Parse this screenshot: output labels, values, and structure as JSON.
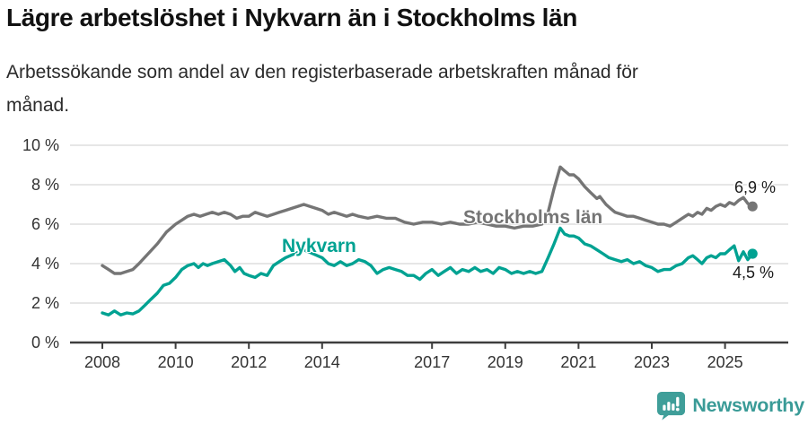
{
  "header": {
    "title": "Lägre arbetslöshet i Nykvarn än i Stockholms län",
    "subtitle_line1": "Arbetssökande som andel av den registerbaserade arbetskraften månad för",
    "subtitle_line2": "månad."
  },
  "chart_data": {
    "type": "line",
    "title": "Lägre arbetslöshet i Nykvarn än i Stockholms län",
    "subtitle": "Arbetssökande som andel av den registerbaserade arbetskraften månad för månad.",
    "x_axis": {
      "range": [
        2008,
        2025.9
      ],
      "ticks": [
        {
          "value": 2008,
          "label": "2008"
        },
        {
          "value": 2010,
          "label": "2010"
        },
        {
          "value": 2012,
          "label": "2012"
        },
        {
          "value": 2014,
          "label": "2014"
        },
        {
          "value": 2017,
          "label": "2017"
        },
        {
          "value": 2019,
          "label": "2019"
        },
        {
          "value": 2021,
          "label": "2021"
        },
        {
          "value": 2023,
          "label": "2023"
        },
        {
          "value": 2025,
          "label": "2025"
        }
      ]
    },
    "y_axis": {
      "range": [
        0,
        10
      ],
      "unit": "%",
      "ticks": [
        {
          "value": 0,
          "label": "0 %"
        },
        {
          "value": 2,
          "label": "2 %"
        },
        {
          "value": 4,
          "label": "4 %"
        },
        {
          "value": 6,
          "label": "6 %"
        },
        {
          "value": 8,
          "label": "8 %"
        },
        {
          "value": 10,
          "label": "10 %"
        }
      ]
    },
    "style": {
      "grid_color": "#dedede",
      "axis_color": "#3d3d3d",
      "tick_color": "#333333"
    },
    "legend_position": "inline-labels",
    "series": [
      {
        "id": "stockholms-lan",
        "name": "Stockholms län",
        "color": "#757575",
        "end_label": "6,9 %",
        "points": [
          [
            2008.0,
            3.9
          ],
          [
            2008.17,
            3.7
          ],
          [
            2008.33,
            3.5
          ],
          [
            2008.5,
            3.5
          ],
          [
            2008.67,
            3.6
          ],
          [
            2008.83,
            3.7
          ],
          [
            2009.0,
            4.0
          ],
          [
            2009.25,
            4.5
          ],
          [
            2009.5,
            5.0
          ],
          [
            2009.75,
            5.6
          ],
          [
            2010.0,
            6.0
          ],
          [
            2010.17,
            6.2
          ],
          [
            2010.33,
            6.4
          ],
          [
            2010.5,
            6.5
          ],
          [
            2010.67,
            6.4
          ],
          [
            2010.83,
            6.5
          ],
          [
            2011.0,
            6.6
          ],
          [
            2011.17,
            6.5
          ],
          [
            2011.33,
            6.6
          ],
          [
            2011.5,
            6.5
          ],
          [
            2011.67,
            6.3
          ],
          [
            2011.83,
            6.4
          ],
          [
            2012.0,
            6.4
          ],
          [
            2012.17,
            6.6
          ],
          [
            2012.33,
            6.5
          ],
          [
            2012.5,
            6.4
          ],
          [
            2012.67,
            6.5
          ],
          [
            2012.83,
            6.6
          ],
          [
            2013.0,
            6.7
          ],
          [
            2013.17,
            6.8
          ],
          [
            2013.33,
            6.9
          ],
          [
            2013.5,
            7.0
          ],
          [
            2013.67,
            6.9
          ],
          [
            2013.83,
            6.8
          ],
          [
            2014.0,
            6.7
          ],
          [
            2014.17,
            6.5
          ],
          [
            2014.33,
            6.6
          ],
          [
            2014.5,
            6.5
          ],
          [
            2014.67,
            6.4
          ],
          [
            2014.83,
            6.5
          ],
          [
            2015.0,
            6.4
          ],
          [
            2015.25,
            6.3
          ],
          [
            2015.5,
            6.4
          ],
          [
            2015.75,
            6.3
          ],
          [
            2016.0,
            6.3
          ],
          [
            2016.25,
            6.1
          ],
          [
            2016.5,
            6.0
          ],
          [
            2016.75,
            6.1
          ],
          [
            2017.0,
            6.1
          ],
          [
            2017.25,
            6.0
          ],
          [
            2017.5,
            6.1
          ],
          [
            2017.75,
            6.0
          ],
          [
            2018.0,
            6.0
          ],
          [
            2018.25,
            6.1
          ],
          [
            2018.5,
            6.0
          ],
          [
            2018.75,
            5.9
          ],
          [
            2019.0,
            5.9
          ],
          [
            2019.25,
            5.8
          ],
          [
            2019.5,
            5.9
          ],
          [
            2019.75,
            5.9
          ],
          [
            2020.0,
            6.0
          ],
          [
            2020.17,
            6.6
          ],
          [
            2020.33,
            7.8
          ],
          [
            2020.5,
            8.9
          ],
          [
            2020.62,
            8.7
          ],
          [
            2020.75,
            8.5
          ],
          [
            2020.87,
            8.5
          ],
          [
            2021.0,
            8.3
          ],
          [
            2021.17,
            7.9
          ],
          [
            2021.33,
            7.6
          ],
          [
            2021.5,
            7.3
          ],
          [
            2021.58,
            7.4
          ],
          [
            2021.75,
            7.0
          ],
          [
            2021.87,
            6.8
          ],
          [
            2022.0,
            6.6
          ],
          [
            2022.17,
            6.5
          ],
          [
            2022.33,
            6.4
          ],
          [
            2022.5,
            6.4
          ],
          [
            2022.67,
            6.3
          ],
          [
            2022.83,
            6.2
          ],
          [
            2023.0,
            6.1
          ],
          [
            2023.17,
            6.0
          ],
          [
            2023.33,
            6.0
          ],
          [
            2023.5,
            5.9
          ],
          [
            2023.67,
            6.1
          ],
          [
            2023.83,
            6.3
          ],
          [
            2024.0,
            6.5
          ],
          [
            2024.12,
            6.4
          ],
          [
            2024.25,
            6.6
          ],
          [
            2024.37,
            6.5
          ],
          [
            2024.5,
            6.8
          ],
          [
            2024.62,
            6.7
          ],
          [
            2024.75,
            6.9
          ],
          [
            2024.87,
            7.0
          ],
          [
            2025.0,
            6.9
          ],
          [
            2025.12,
            7.1
          ],
          [
            2025.25,
            7.0
          ],
          [
            2025.37,
            7.2
          ],
          [
            2025.5,
            7.35
          ],
          [
            2025.62,
            7.05
          ],
          [
            2025.75,
            6.9
          ]
        ]
      },
      {
        "id": "nykvarn",
        "name": "Nykvarn",
        "color": "#00a292",
        "end_label": "4,5 %",
        "points": [
          [
            2008.0,
            1.5
          ],
          [
            2008.17,
            1.4
          ],
          [
            2008.33,
            1.6
          ],
          [
            2008.5,
            1.4
          ],
          [
            2008.67,
            1.5
          ],
          [
            2008.83,
            1.45
          ],
          [
            2009.0,
            1.6
          ],
          [
            2009.17,
            1.9
          ],
          [
            2009.33,
            2.2
          ],
          [
            2009.5,
            2.5
          ],
          [
            2009.67,
            2.9
          ],
          [
            2009.83,
            3.0
          ],
          [
            2010.0,
            3.3
          ],
          [
            2010.17,
            3.7
          ],
          [
            2010.33,
            3.9
          ],
          [
            2010.5,
            4.0
          ],
          [
            2010.62,
            3.8
          ],
          [
            2010.75,
            4.0
          ],
          [
            2010.87,
            3.9
          ],
          [
            2011.0,
            4.0
          ],
          [
            2011.17,
            4.1
          ],
          [
            2011.33,
            4.2
          ],
          [
            2011.5,
            3.9
          ],
          [
            2011.62,
            3.6
          ],
          [
            2011.75,
            3.8
          ],
          [
            2011.87,
            3.5
          ],
          [
            2012.0,
            3.4
          ],
          [
            2012.17,
            3.3
          ],
          [
            2012.33,
            3.5
          ],
          [
            2012.5,
            3.4
          ],
          [
            2012.67,
            3.9
          ],
          [
            2012.83,
            4.1
          ],
          [
            2013.0,
            4.3
          ],
          [
            2013.25,
            4.5
          ],
          [
            2013.5,
            4.7
          ],
          [
            2013.75,
            4.5
          ],
          [
            2014.0,
            4.3
          ],
          [
            2014.17,
            4.0
          ],
          [
            2014.33,
            3.9
          ],
          [
            2014.5,
            4.1
          ],
          [
            2014.67,
            3.9
          ],
          [
            2014.83,
            4.0
          ],
          [
            2015.0,
            4.2
          ],
          [
            2015.17,
            4.1
          ],
          [
            2015.33,
            3.9
          ],
          [
            2015.5,
            3.5
          ],
          [
            2015.67,
            3.7
          ],
          [
            2015.83,
            3.8
          ],
          [
            2016.0,
            3.7
          ],
          [
            2016.17,
            3.6
          ],
          [
            2016.33,
            3.4
          ],
          [
            2016.5,
            3.4
          ],
          [
            2016.67,
            3.2
          ],
          [
            2016.83,
            3.5
          ],
          [
            2017.0,
            3.7
          ],
          [
            2017.17,
            3.4
          ],
          [
            2017.33,
            3.6
          ],
          [
            2017.5,
            3.8
          ],
          [
            2017.67,
            3.5
          ],
          [
            2017.83,
            3.7
          ],
          [
            2018.0,
            3.6
          ],
          [
            2018.17,
            3.8
          ],
          [
            2018.33,
            3.6
          ],
          [
            2018.5,
            3.7
          ],
          [
            2018.67,
            3.5
          ],
          [
            2018.83,
            3.8
          ],
          [
            2019.0,
            3.7
          ],
          [
            2019.17,
            3.5
          ],
          [
            2019.33,
            3.6
          ],
          [
            2019.5,
            3.5
          ],
          [
            2019.67,
            3.6
          ],
          [
            2019.83,
            3.5
          ],
          [
            2020.0,
            3.6
          ],
          [
            2020.17,
            4.3
          ],
          [
            2020.33,
            5.0
          ],
          [
            2020.5,
            5.8
          ],
          [
            2020.62,
            5.5
          ],
          [
            2020.75,
            5.4
          ],
          [
            2020.87,
            5.4
          ],
          [
            2021.0,
            5.3
          ],
          [
            2021.17,
            5.0
          ],
          [
            2021.33,
            4.9
          ],
          [
            2021.5,
            4.7
          ],
          [
            2021.67,
            4.5
          ],
          [
            2021.83,
            4.3
          ],
          [
            2022.0,
            4.2
          ],
          [
            2022.17,
            4.1
          ],
          [
            2022.33,
            4.2
          ],
          [
            2022.5,
            4.0
          ],
          [
            2022.67,
            4.1
          ],
          [
            2022.83,
            3.9
          ],
          [
            2023.0,
            3.8
          ],
          [
            2023.17,
            3.6
          ],
          [
            2023.33,
            3.7
          ],
          [
            2023.5,
            3.7
          ],
          [
            2023.67,
            3.9
          ],
          [
            2023.83,
            4.0
          ],
          [
            2024.0,
            4.3
          ],
          [
            2024.12,
            4.4
          ],
          [
            2024.25,
            4.2
          ],
          [
            2024.37,
            4.0
          ],
          [
            2024.5,
            4.3
          ],
          [
            2024.62,
            4.4
          ],
          [
            2024.75,
            4.3
          ],
          [
            2024.87,
            4.5
          ],
          [
            2025.0,
            4.5
          ],
          [
            2025.12,
            4.7
          ],
          [
            2025.25,
            4.9
          ],
          [
            2025.37,
            4.15
          ],
          [
            2025.5,
            4.6
          ],
          [
            2025.62,
            4.2
          ],
          [
            2025.75,
            4.5
          ]
        ]
      }
    ]
  },
  "footer": {
    "brand": "Newsworthy",
    "brand_color": "#3a9b97"
  }
}
